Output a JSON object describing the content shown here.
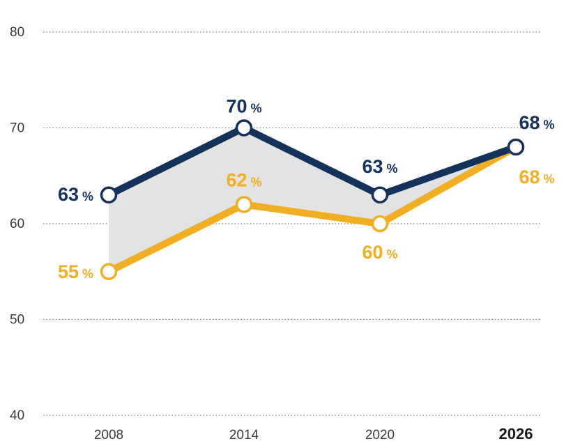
{
  "chart_data": {
    "type": "line",
    "title": "",
    "xlabel": "",
    "ylabel": "",
    "categories": [
      "2008",
      "2014",
      "2020",
      "2026"
    ],
    "highlight_category": "2026",
    "ylim": [
      40,
      80
    ],
    "yticks": [
      40,
      50,
      60,
      70,
      80
    ],
    "grid": true,
    "fill_between_series": true,
    "fill_color": "#e3e3e3",
    "series": [
      {
        "key": "dark",
        "color": "#14325c",
        "values": [
          63,
          70,
          63,
          68
        ],
        "labels": [
          "63",
          "70",
          "63",
          "68"
        ]
      },
      {
        "key": "gold",
        "color": "#f0ae22",
        "values": [
          55,
          62,
          60,
          68
        ],
        "labels": [
          "55",
          "62",
          "60",
          "68"
        ]
      }
    ],
    "unit": "%"
  }
}
